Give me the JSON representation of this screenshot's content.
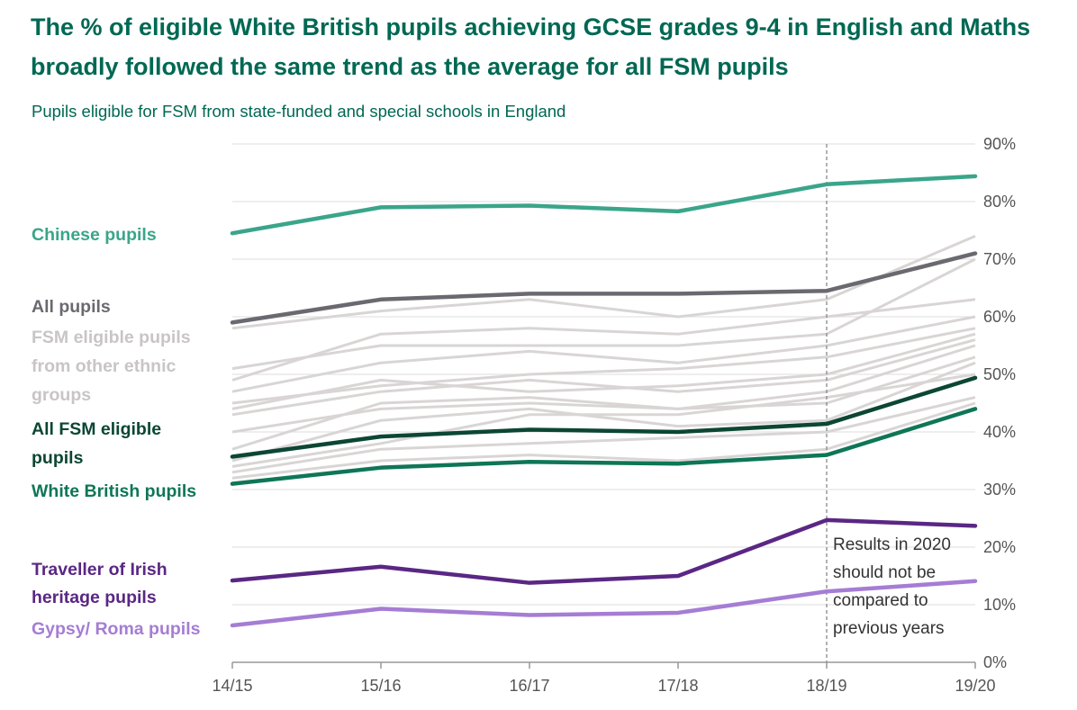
{
  "title": "The % of eligible White British pupils achieving GCSE grades 9-4 in English and Maths broadly followed the same trend as the average for all FSM pupils",
  "subtitle": "Pupils eligible for FSM from state-funded and special schools in England",
  "chart_data": {
    "type": "line",
    "title": "The % of eligible White British pupils achieving GCSE grades 9-4 in English and Maths broadly followed the same trend as the average for all FSM pupils",
    "subtitle": "Pupils eligible for FSM from state-funded and special schools in England",
    "categories": [
      "14/15",
      "15/16",
      "16/17",
      "17/18",
      "18/19",
      "19/20"
    ],
    "y_ticks": [
      "0%",
      "10%",
      "20%",
      "30%",
      "40%",
      "50%",
      "60%",
      "70%",
      "80%",
      "90%"
    ],
    "ylim": [
      0,
      90
    ],
    "y_axis_side": "right",
    "grid": true,
    "legend": "direct labels at left",
    "annotation": {
      "at_category": "18/19",
      "lines": [
        "Results in 2020",
        "should not be",
        "compared to",
        "previous years"
      ]
    },
    "background_series_label": [
      "FSM eligible pupils",
      "from other ethnic",
      "groups"
    ],
    "background_series_color": "#d9d5d5",
    "background_series": [
      [
        58,
        61,
        63,
        60,
        63,
        74
      ],
      [
        51,
        55,
        55,
        55,
        57,
        70
      ],
      [
        49,
        57,
        58,
        57,
        60,
        63
      ],
      [
        47,
        52,
        54,
        52,
        55,
        60
      ],
      [
        45,
        48,
        50,
        51,
        53,
        58
      ],
      [
        44,
        49,
        47,
        48,
        50,
        57
      ],
      [
        43,
        47,
        49,
        47,
        49,
        56
      ],
      [
        40,
        44,
        45,
        44,
        47,
        55
      ],
      [
        37,
        45,
        46,
        44,
        45,
        53
      ],
      [
        35,
        42,
        44,
        41,
        42,
        52
      ],
      [
        34,
        38,
        43,
        43,
        46,
        50
      ],
      [
        33,
        37,
        38,
        39,
        40,
        46
      ],
      [
        32,
        35,
        36,
        35,
        37,
        45
      ]
    ],
    "series": [
      {
        "name": "Chinese pupils",
        "label_lines": [
          "Chinese pupils"
        ],
        "color": "#3aa58a",
        "values": [
          74.5,
          79,
          79.3,
          78.3,
          83,
          84.4
        ]
      },
      {
        "name": "All pupils",
        "label_lines": [
          "All pupils"
        ],
        "color": "#6b6970",
        "values": [
          59,
          63,
          64,
          64,
          64.5,
          71
        ]
      },
      {
        "name": "All FSM eligible pupils",
        "label_lines": [
          "All FSM eligible",
          "pupils"
        ],
        "color": "#0c4634",
        "values": [
          35.7,
          39.2,
          40.4,
          40,
          41.4,
          49.4
        ]
      },
      {
        "name": "White British pupils",
        "label_lines": [
          "White British pupils"
        ],
        "color": "#0e7656",
        "values": [
          31,
          33.8,
          34.8,
          34.5,
          36,
          44
        ]
      },
      {
        "name": "Traveller of Irish heritage pupils",
        "label_lines": [
          "Traveller of Irish",
          "heritage pupils"
        ],
        "color": "#5a2784",
        "values": [
          14.2,
          16.6,
          13.8,
          15,
          24.7,
          23.7
        ]
      },
      {
        "name": "Gypsy/ Roma pupils",
        "label_lines": [
          "Gypsy/ Roma pupils"
        ],
        "color": "#a57dd4",
        "values": [
          6.4,
          9.3,
          8.2,
          8.6,
          12.3,
          14.1
        ]
      }
    ]
  }
}
